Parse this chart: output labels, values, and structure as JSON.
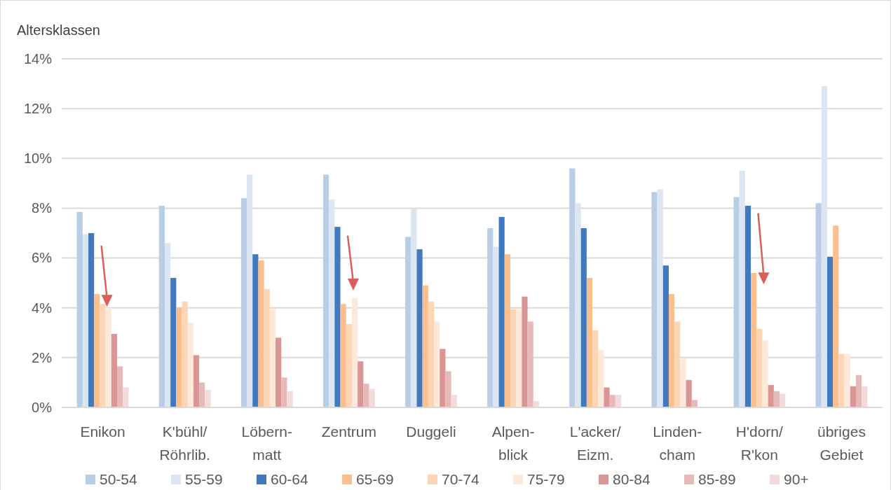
{
  "chart_data": {
    "type": "bar",
    "ylabel": "Altersklassen",
    "categories": [
      "Enikon",
      "K'bühl/Röhrlib.",
      "Löbern-matt",
      "Zentrum",
      "Duggeli",
      "Alpen-blick",
      "L'acker/Eizm.",
      "Linden-cham",
      "H'dorn/R'kon",
      "übriges Gebiet"
    ],
    "series": [
      {
        "name": "50-54",
        "color": "#b9cde5",
        "values": [
          7.85,
          8.1,
          8.4,
          9.35,
          6.85,
          7.2,
          9.6,
          8.65,
          8.45,
          8.2
        ]
      },
      {
        "name": "55-59",
        "color": "#dce6f2",
        "values": [
          6.95,
          6.6,
          9.35,
          8.35,
          8.0,
          6.45,
          8.2,
          8.75,
          9.5,
          12.9
        ]
      },
      {
        "name": "60-64",
        "color": "#4279be",
        "values": [
          7.0,
          5.2,
          6.15,
          7.25,
          6.35,
          7.65,
          7.2,
          5.7,
          8.1,
          6.05
        ]
      },
      {
        "name": "65-69",
        "color": "#f9bf8f",
        "values": [
          4.55,
          4.0,
          5.9,
          4.15,
          4.9,
          6.15,
          5.2,
          4.55,
          5.4,
          7.3
        ]
      },
      {
        "name": "70-74",
        "color": "#fcd5b5",
        "values": [
          4.15,
          4.25,
          4.75,
          3.35,
          4.25,
          3.95,
          3.1,
          3.45,
          3.15,
          2.15
        ]
      },
      {
        "name": "75-79",
        "color": "#fde9d9",
        "values": [
          4.0,
          3.4,
          3.95,
          4.4,
          3.45,
          3.95,
          2.3,
          1.95,
          2.7,
          2.15
        ]
      },
      {
        "name": "80-84",
        "color": "#da9694",
        "values": [
          2.95,
          2.1,
          2.8,
          1.85,
          2.35,
          4.45,
          0.8,
          1.1,
          0.9,
          0.85
        ]
      },
      {
        "name": "85-89",
        "color": "#e6b9b8",
        "values": [
          1.65,
          1.0,
          1.2,
          0.95,
          1.45,
          3.45,
          0.5,
          0.3,
          0.65,
          1.3
        ]
      },
      {
        "name": "90+",
        "color": "#f2dcdb",
        "values": [
          0.8,
          0.7,
          0.65,
          0.75,
          0.5,
          0.25,
          0.5,
          0,
          0.55,
          0.85
        ]
      }
    ],
    "ylim": [
      0,
      14
    ],
    "yticks": [
      {
        "value": 0,
        "label": "0%"
      },
      {
        "value": 2,
        "label": "2%"
      },
      {
        "value": 4,
        "label": "4%"
      },
      {
        "value": 6,
        "label": "6%"
      },
      {
        "value": 8,
        "label": "8%"
      },
      {
        "value": 10,
        "label": "10%"
      },
      {
        "value": 12,
        "label": "12%"
      },
      {
        "value": 14,
        "label": "14%"
      }
    ],
    "grid": "y",
    "legend": "bottom"
  }
}
